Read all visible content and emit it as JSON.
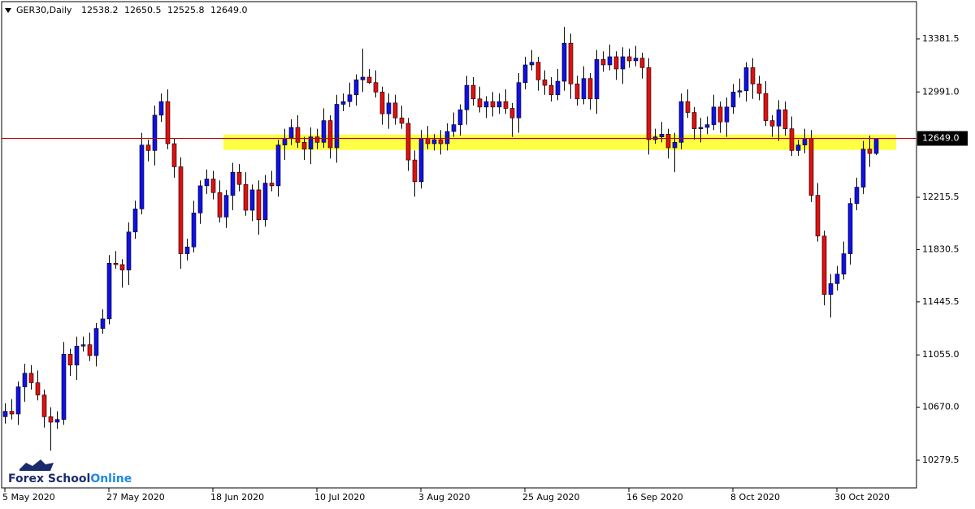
{
  "chart_data": {
    "type": "candlestick",
    "header": {
      "symbol": "GER30,Daily",
      "ohlc": [
        "12538.2",
        "12650.5",
        "12525.8",
        "12649.0"
      ]
    },
    "logo": [
      "Forex School",
      "Online"
    ],
    "categories": [
      "5 May 2020",
      null,
      null,
      null,
      null,
      null,
      null,
      null,
      null,
      null,
      null,
      null,
      null,
      null,
      null,
      null,
      "27 May 2020",
      null,
      null,
      null,
      null,
      null,
      null,
      null,
      null,
      null,
      null,
      null,
      null,
      null,
      null,
      null,
      "18 Jun 2020",
      null,
      null,
      null,
      null,
      null,
      null,
      null,
      null,
      null,
      null,
      null,
      null,
      null,
      null,
      null,
      "10 Jul 2020",
      null,
      null,
      null,
      null,
      null,
      null,
      null,
      null,
      null,
      null,
      null,
      null,
      null,
      null,
      null,
      "3 Aug 2020",
      null,
      null,
      null,
      null,
      null,
      null,
      null,
      null,
      null,
      null,
      null,
      null,
      null,
      null,
      null,
      "25 Aug 2020",
      null,
      null,
      null,
      null,
      null,
      null,
      null,
      null,
      null,
      null,
      null,
      null,
      null,
      null,
      null,
      "16 Sep 2020",
      null,
      null,
      null,
      null,
      null,
      null,
      null,
      null,
      null,
      null,
      null,
      null,
      null,
      null,
      null,
      "8 Oct 2020",
      null,
      null,
      null,
      null,
      null,
      null,
      null,
      null,
      null,
      null,
      null,
      null,
      null,
      null,
      null,
      "30 Oct 2020",
      null,
      null,
      null,
      null,
      null,
      null
    ],
    "open": [
      10600,
      10640,
      10620,
      10820,
      10920,
      10850,
      10760,
      10600,
      10560,
      10580,
      11060,
      10980,
      11120,
      11130,
      11050,
      11250,
      11320,
      11730,
      11720,
      11680,
      11960,
      12130,
      12600,
      12560,
      12820,
      12920,
      12610,
      12440,
      11800,
      11850,
      12100,
      12300,
      12350,
      12250,
      12070,
      12230,
      12400,
      12310,
      12120,
      12270,
      12050,
      12320,
      12300,
      12600,
      12650,
      12730,
      12620,
      12570,
      12660,
      12620,
      12780,
      12580,
      12900,
      12920,
      12970,
      13080,
      13100,
      13060,
      12990,
      12830,
      12910,
      12800,
      12760,
      12490,
      12330,
      12650,
      12610,
      12640,
      12610,
      12700,
      12750,
      12860,
      13040,
      12940,
      12880,
      12920,
      12880,
      12920,
      12870,
      12800,
      13060,
      13190,
      13210,
      13080,
      13040,
      12970,
      13070,
      13350,
      13050,
      12940,
      13090,
      12940,
      13230,
      13190,
      13250,
      13160,
      13250,
      13220,
      13240,
      13170,
      12640,
      12660,
      12680,
      12580,
      12620,
      12920,
      12840,
      12720,
      12730,
      12750,
      12880,
      12770,
      12880,
      12990,
      13000,
      13170,
      13050,
      12980,
      12780,
      12740,
      12860,
      12720,
      12560,
      12600,
      12650,
      12230,
      11930,
      11500,
      11580,
      11650,
      11800,
      12170,
      12290,
      12570,
      12538.2
    ],
    "high": [
      10700,
      10730,
      10860,
      10990,
      10980,
      10940,
      10800,
      10670,
      10640,
      11150,
      11100,
      11190,
      11190,
      11220,
      11290,
      11390,
      11790,
      11820,
      11760,
      12030,
      12190,
      12690,
      12640,
      12890,
      12980,
      13010,
      12650,
      12510,
      11910,
      12190,
      12340,
      12420,
      12410,
      12340,
      12270,
      12470,
      12460,
      12400,
      12310,
      12340,
      12380,
      12410,
      12640,
      12720,
      12790,
      12820,
      12660,
      12730,
      12720,
      12870,
      12820,
      12970,
      12980,
      13060,
      13120,
      13310,
      13160,
      13150,
      13030,
      12980,
      12970,
      12890,
      12800,
      12560,
      12710,
      12740,
      12680,
      12710,
      12760,
      12840,
      12900,
      13110,
      13100,
      13030,
      12960,
      12990,
      12980,
      13010,
      12910,
      13130,
      13250,
      13300,
      13250,
      13150,
      13100,
      13160,
      13470,
      13420,
      13110,
      13180,
      13130,
      13300,
      13290,
      13340,
      13290,
      13320,
      13310,
      13330,
      13280,
      13240,
      12720,
      12770,
      12720,
      12690,
      12980,
      13010,
      12880,
      12800,
      12810,
      12970,
      12920,
      12950,
      13050,
      13090,
      13210,
      13240,
      13110,
      13070,
      12820,
      12930,
      12920,
      12810,
      12640,
      12720,
      12710,
      12320,
      11970,
      11650,
      11710,
      11890,
      12210,
      12360,
      12630,
      12670,
      12650.5
    ],
    "low": [
      10550,
      10580,
      10540,
      10710,
      10800,
      10720,
      10520,
      10350,
      10510,
      10540,
      10900,
      10870,
      11080,
      11010,
      10970,
      11210,
      11280,
      11690,
      11550,
      11570,
      11910,
      12090,
      12480,
      12450,
      12770,
      12570,
      12360,
      11690,
      11750,
      11810,
      12020,
      12240,
      12200,
      12030,
      11990,
      12120,
      12260,
      12080,
      12040,
      11940,
      12000,
      12260,
      12220,
      12490,
      12600,
      12580,
      12490,
      12460,
      12570,
      12580,
      12500,
      12470,
      12850,
      12880,
      12890,
      12990,
      13050,
      12950,
      12750,
      12720,
      12750,
      12720,
      12410,
      12220,
      12280,
      12570,
      12560,
      12530,
      12560,
      12660,
      12670,
      12750,
      12890,
      12840,
      12800,
      12810,
      12830,
      12830,
      12660,
      12690,
      13010,
      13150,
      13000,
      12970,
      12920,
      12930,
      13000,
      12940,
      12890,
      12900,
      12860,
      12830,
      13140,
      13150,
      13080,
      13050,
      13170,
      13180,
      13090,
      12530,
      12610,
      12620,
      12500,
      12400,
      12570,
      12800,
      12640,
      12620,
      12680,
      12710,
      12690,
      12660,
      12830,
      12950,
      12920,
      12940,
      12930,
      12740,
      12660,
      12630,
      12670,
      12520,
      12520,
      12540,
      12180,
      11890,
      11420,
      11330,
      11530,
      11610,
      11720,
      12120,
      12240,
      12440,
      12525.8
    ],
    "close": [
      10640,
      10620,
      10820,
      10920,
      10850,
      10760,
      10600,
      10560,
      10580,
      11060,
      10980,
      11120,
      11130,
      11050,
      11250,
      11320,
      11730,
      11720,
      11680,
      11960,
      12130,
      12600,
      12560,
      12820,
      12920,
      12610,
      12440,
      11800,
      11850,
      12100,
      12300,
      12350,
      12250,
      12070,
      12230,
      12400,
      12310,
      12120,
      12270,
      12050,
      12320,
      12300,
      12600,
      12650,
      12730,
      12620,
      12570,
      12660,
      12620,
      12780,
      12580,
      12900,
      12920,
      12970,
      13080,
      13100,
      13060,
      12990,
      12830,
      12910,
      12800,
      12760,
      12490,
      12330,
      12650,
      12610,
      12640,
      12610,
      12700,
      12750,
      12860,
      13040,
      12940,
      12880,
      12920,
      12880,
      12920,
      12870,
      12800,
      13060,
      13190,
      13210,
      13080,
      13040,
      12970,
      13070,
      13350,
      13050,
      12940,
      13090,
      12940,
      13230,
      13190,
      13250,
      13160,
      13250,
      13220,
      13240,
      13170,
      12640,
      12660,
      12680,
      12580,
      12620,
      12920,
      12840,
      12720,
      12730,
      12750,
      12880,
      12770,
      12880,
      12990,
      13000,
      13170,
      13050,
      12980,
      12780,
      12740,
      12860,
      12720,
      12560,
      12600,
      12650,
      12230,
      11930,
      11500,
      11580,
      11650,
      11800,
      12170,
      12290,
      12570,
      12538.2,
      12649.0
    ],
    "up_color": "#1010e8",
    "down_color": "#e01010",
    "ylim": [
      10076,
      13656
    ],
    "yticks": [
      13381.5,
      {
        "value": 12991,
        "label": "12991.0"
      },
      12215.5,
      11830.5,
      11445.5,
      {
        "value": 11055,
        "label": "11055.0"
      },
      {
        "value": 10670,
        "label": "10670.0"
      },
      10279.5
    ],
    "price_line": {
      "value": 12649.0,
      "label": "12649.0",
      "color": "#c00000"
    },
    "zone": {
      "from": 12564,
      "to": 12677,
      "color": "#ffff44"
    }
  }
}
